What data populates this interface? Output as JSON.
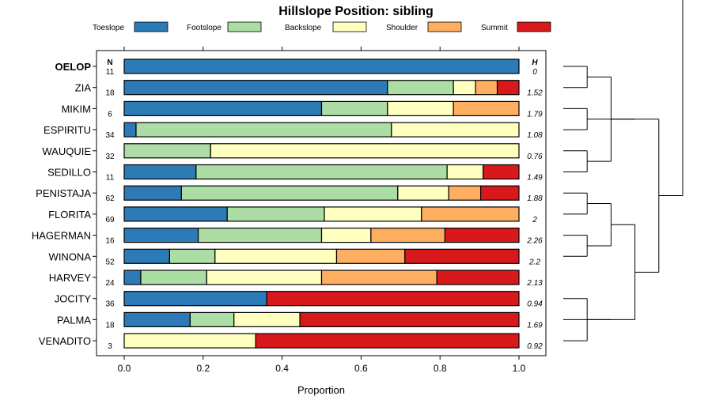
{
  "chart_data": {
    "type": "bar",
    "orientation": "horizontal",
    "stacked": true,
    "title": "Hillslope Position: sibling",
    "xlabel": "Proportion",
    "xlim": [
      0,
      1
    ],
    "x_ticks": [
      "0.0",
      "0.2",
      "0.4",
      "0.6",
      "0.8",
      "1.0"
    ],
    "n_header": "N",
    "h_header": "H",
    "legend": [
      {
        "name": "Toeslope",
        "color": "#2c7bb6"
      },
      {
        "name": "Footslope",
        "color": "#abdda4"
      },
      {
        "name": "Backslope",
        "color": "#ffffbf"
      },
      {
        "name": "Shoulder",
        "color": "#fdae61"
      },
      {
        "name": "Summit",
        "color": "#d7191c"
      }
    ],
    "rows": [
      {
        "name": "OELOP",
        "bold": true,
        "n": "11",
        "h": "0",
        "values": [
          1.0,
          0,
          0,
          0,
          0
        ]
      },
      {
        "name": "ZIA",
        "n": "18",
        "h": "1.52",
        "values": [
          0.667,
          0.167,
          0.056,
          0.055,
          0.055
        ]
      },
      {
        "name": "MIKIM",
        "n": "6",
        "h": "1.79",
        "values": [
          0.5,
          0.167,
          0.167,
          0.166,
          0
        ]
      },
      {
        "name": "ESPIRITU",
        "n": "34",
        "h": "1.08",
        "values": [
          0.03,
          0.647,
          0.323,
          0,
          0
        ]
      },
      {
        "name": "WAUQUIE",
        "n": "32",
        "h": "0.76",
        "values": [
          0,
          0.219,
          0.781,
          0,
          0
        ]
      },
      {
        "name": "SEDILLO",
        "n": "11",
        "h": "1.49",
        "values": [
          0.182,
          0.636,
          0.091,
          0,
          0.091
        ]
      },
      {
        "name": "PENISTAJA",
        "n": "62",
        "h": "1.88",
        "values": [
          0.145,
          0.548,
          0.129,
          0.081,
          0.097
        ]
      },
      {
        "name": "FLORITA",
        "n": "69",
        "h": "2",
        "values": [
          0.261,
          0.246,
          0.246,
          0.247,
          0
        ]
      },
      {
        "name": "HAGERMAN",
        "n": "16",
        "h": "2.26",
        "values": [
          0.1875,
          0.3125,
          0.125,
          0.1875,
          0.1875
        ]
      },
      {
        "name": "WINONA",
        "n": "52",
        "h": "2.2",
        "values": [
          0.115,
          0.115,
          0.308,
          0.173,
          0.289
        ]
      },
      {
        "name": "HARVEY",
        "n": "24",
        "h": "2.13",
        "values": [
          0.042,
          0.167,
          0.291,
          0.292,
          0.208
        ]
      },
      {
        "name": "JOCITY",
        "n": "36",
        "h": "0.94",
        "values": [
          0.361,
          0,
          0,
          0,
          0.639
        ]
      },
      {
        "name": "PALMA",
        "n": "18",
        "h": "1.69",
        "values": [
          0.167,
          0.111,
          0.167,
          0,
          0.555
        ]
      },
      {
        "name": "VENADITO",
        "n": "3",
        "h": "0.92",
        "values": [
          0,
          0,
          0.333,
          0,
          0.667
        ]
      }
    ],
    "dendrogram_merges": [
      [
        1,
        2
      ],
      [
        4,
        3
      ],
      [
        5,
        6
      ],
      [
        9,
        10
      ],
      [
        7,
        8
      ],
      [
        14,
        12
      ],
      [
        13,
        -6
      ],
      [
        -1,
        -3
      ],
      [
        -5,
        -4
      ],
      [
        -2,
        -8
      ],
      [
        -9,
        -7
      ],
      [
        -10,
        -11
      ],
      [
        -12,
        -13
      ]
    ]
  }
}
